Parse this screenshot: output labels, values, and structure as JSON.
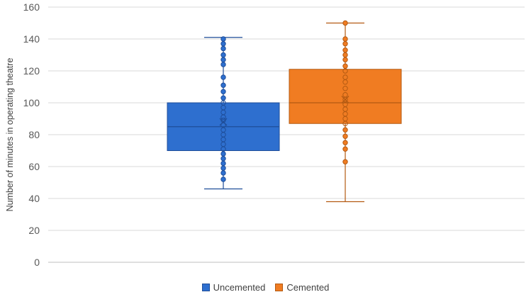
{
  "chart_data": {
    "type": "box",
    "title": "",
    "xlabel": "",
    "ylabel": "Number of minutes in operating theatre",
    "ylim": [
      0,
      160
    ],
    "yticks": [
      0,
      20,
      40,
      60,
      80,
      100,
      120,
      140,
      160
    ],
    "grid": true,
    "legend_position": "bottom",
    "series": [
      {
        "name": "Uncemented",
        "color": "#2e6fcf",
        "edge_color": "#1f4e99",
        "min": 46,
        "q1": 70,
        "median": 85,
        "q3": 100,
        "max": 141,
        "mean": 88,
        "points": [
          52,
          56,
          59,
          62,
          65,
          68,
          71,
          74,
          77,
          80,
          83,
          86,
          89,
          91,
          94,
          97,
          100,
          103,
          107,
          111,
          116,
          124,
          127,
          130,
          134,
          137,
          140
        ]
      },
      {
        "name": "Cemented",
        "color": "#f07c22",
        "edge_color": "#b35a12",
        "min": 38,
        "q1": 87,
        "median": 100,
        "q3": 121,
        "max": 150,
        "mean": 102,
        "points": [
          63,
          71,
          75,
          79,
          83,
          87,
          90,
          93,
          96,
          99,
          102,
          105,
          109,
          113,
          116,
          120,
          123,
          127,
          130,
          133,
          137,
          140,
          150
        ]
      }
    ]
  }
}
